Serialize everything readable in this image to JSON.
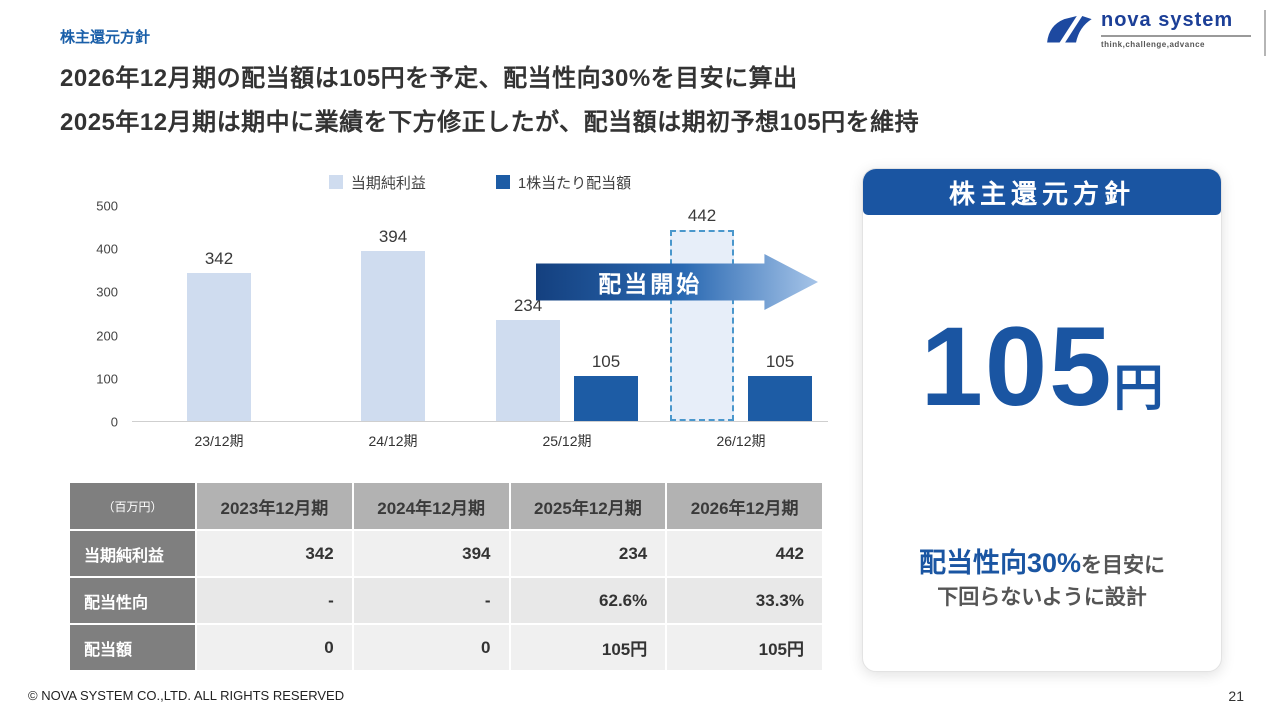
{
  "page": {
    "eyebrow": "株主還元方針",
    "title_line1": "2026年12月期の配当額は105円を予定、配当性向30%を目安に算出",
    "title_line2": "2025年12月期は期中に業績を下方修正したが、配当額は期初予想105円を維持",
    "footer": "© NOVA SYSTEM CO.,LTD. ALL RIGHTS RESERVED",
    "page_number": "21"
  },
  "logo": {
    "name": "nova system",
    "tagline": "think,challenge,advance"
  },
  "chart_data": {
    "type": "bar",
    "title": "",
    "categories": [
      "23/12期",
      "24/12期",
      "25/12期",
      "26/12期"
    ],
    "series": [
      {
        "name": "当期純利益",
        "values": [
          342,
          394,
          234,
          442
        ],
        "color": "#cfdcef"
      },
      {
        "name": "1株当たり配当額",
        "values": [
          null,
          null,
          105,
          105
        ],
        "color": "#1d5ca5"
      }
    ],
    "forecast": {
      "series": 0,
      "index": 3
    },
    "ylim": [
      0,
      500
    ],
    "yticks": [
      0,
      100,
      200,
      300,
      400,
      500
    ],
    "annotation": "配当開始",
    "legend_position": "top",
    "grid": false
  },
  "table": {
    "unit_label": "（百万円）",
    "columns": [
      "2023年12月期",
      "2024年12月期",
      "2025年12月期",
      "2026年12月期"
    ],
    "rows": [
      {
        "label": "当期純利益",
        "values": [
          "342",
          "394",
          "234",
          "442"
        ]
      },
      {
        "label": "配当性向",
        "values": [
          "-",
          "-",
          "62.6%",
          "33.3%"
        ]
      },
      {
        "label": "配当額",
        "values": [
          "0",
          "0",
          "105円",
          "105円"
        ]
      }
    ]
  },
  "card": {
    "title": "株主還元方針",
    "value": "105",
    "unit": "円",
    "note_highlight": "配当性向30%",
    "note_tail": "を目安に",
    "note_line2": "下回らないように設計"
  },
  "colors": {
    "accent_blue": "#1a55a2",
    "bar_light": "#cfdcef",
    "bar_dark": "#1d5ca5",
    "table_header_dark": "#7f7f7f",
    "table_header_light": "#b2b2b2"
  }
}
